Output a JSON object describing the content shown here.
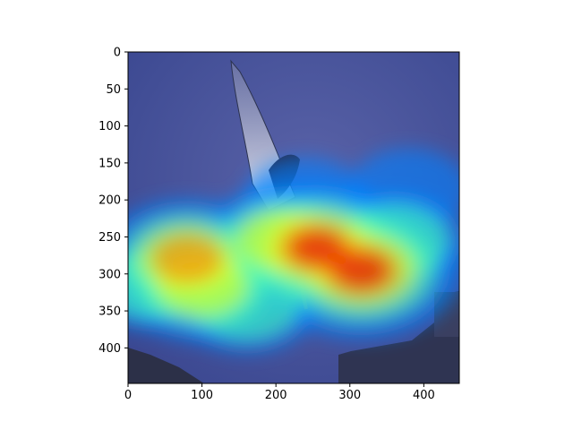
{
  "chart_data": {
    "type": "heatmap",
    "title": "",
    "xlabel": "",
    "ylabel": "",
    "xlim": [
      0,
      448
    ],
    "ylim": [
      448,
      0
    ],
    "x_ticks": [
      0,
      100,
      200,
      300,
      400
    ],
    "y_ticks": [
      0,
      50,
      100,
      150,
      200,
      250,
      300,
      350,
      400
    ],
    "colormap": "jet",
    "overlay_alpha": 0.6,
    "grid": false,
    "legend": "none",
    "background": "photograph: seagull in flight against a dark blue sky, buildings at bottom corners",
    "hotspots": [
      {
        "x": 315,
        "y": 295,
        "intensity": 1.0
      },
      {
        "x": 255,
        "y": 265,
        "intensity": 0.95
      },
      {
        "x": 80,
        "y": 280,
        "intensity": 0.8
      },
      {
        "x": 100,
        "y": 315,
        "intensity": 0.72
      },
      {
        "x": 205,
        "y": 255,
        "intensity": 0.65
      },
      {
        "x": 360,
        "y": 255,
        "intensity": 0.55
      },
      {
        "x": 160,
        "y": 340,
        "intensity": 0.55
      },
      {
        "x": 240,
        "y": 200,
        "intensity": 0.4
      },
      {
        "x": 30,
        "y": 315,
        "intensity": 0.45
      },
      {
        "x": 380,
        "y": 185,
        "intensity": 0.35
      }
    ],
    "colors": {
      "sky": "#3a4790",
      "axis": "#000000",
      "overlay_base": "#00007f"
    }
  }
}
